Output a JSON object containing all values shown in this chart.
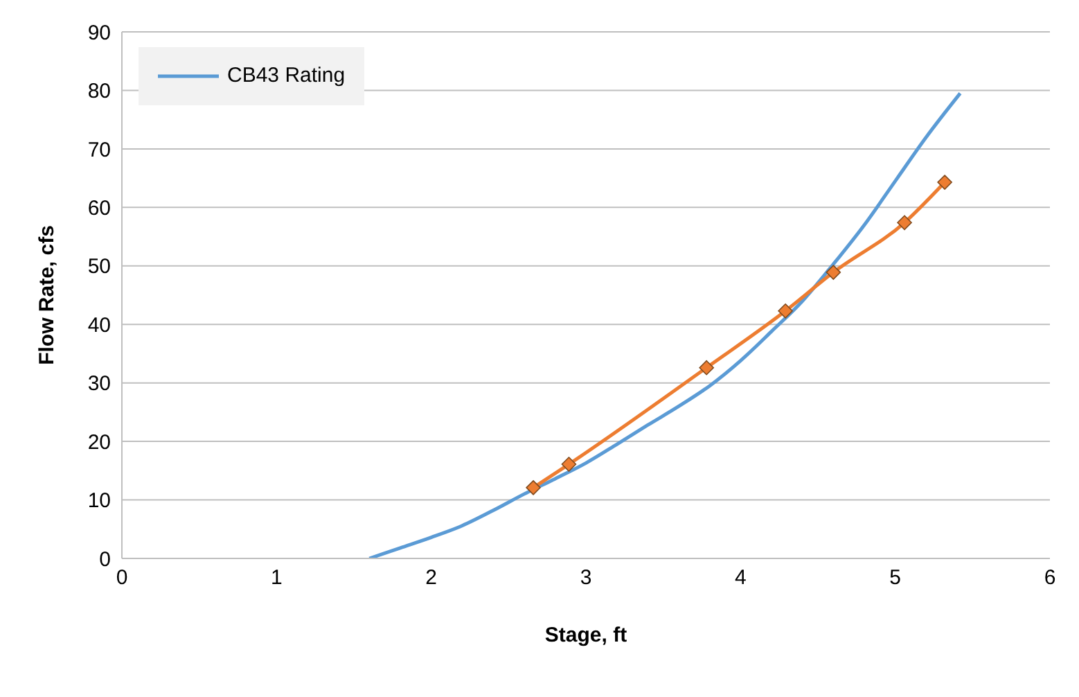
{
  "chart_data": {
    "type": "line",
    "xlabel": "Stage, ft",
    "ylabel": "Flow Rate, cfs",
    "xlim": [
      0,
      6
    ],
    "xticks": [
      0,
      1,
      2,
      3,
      4,
      5,
      6
    ],
    "ylim": [
      0,
      90
    ],
    "yticks": [
      0,
      10,
      20,
      30,
      40,
      50,
      60,
      70,
      80,
      90
    ],
    "grid": "y",
    "legend": "top left",
    "series": [
      {
        "name": "CB43 Rating",
        "color": "#5b9bd5",
        "marker": "none",
        "x": [
          1.6,
          1.8,
          2.0,
          2.2,
          2.4,
          2.6,
          2.8,
          3.0,
          3.2,
          3.4,
          3.6,
          3.8,
          4.0,
          4.2,
          4.4,
          4.6,
          4.8,
          5.0,
          5.2,
          5.42
        ],
        "values": [
          0,
          1.8,
          3.6,
          5.6,
          8.2,
          11,
          13.6,
          16.3,
          19.5,
          22.8,
          26,
          29.5,
          33.8,
          38.8,
          44,
          50.3,
          57,
          64.5,
          72,
          79.5
        ]
      },
      {
        "color": "#ed7d31",
        "marker": "diamond",
        "x": [
          2.66,
          2.89,
          3.78,
          4.29,
          4.6,
          5.06,
          5.32
        ],
        "values": [
          12.1,
          16.1,
          32.6,
          42.3,
          48.9,
          57.4,
          64.3
        ]
      }
    ]
  }
}
